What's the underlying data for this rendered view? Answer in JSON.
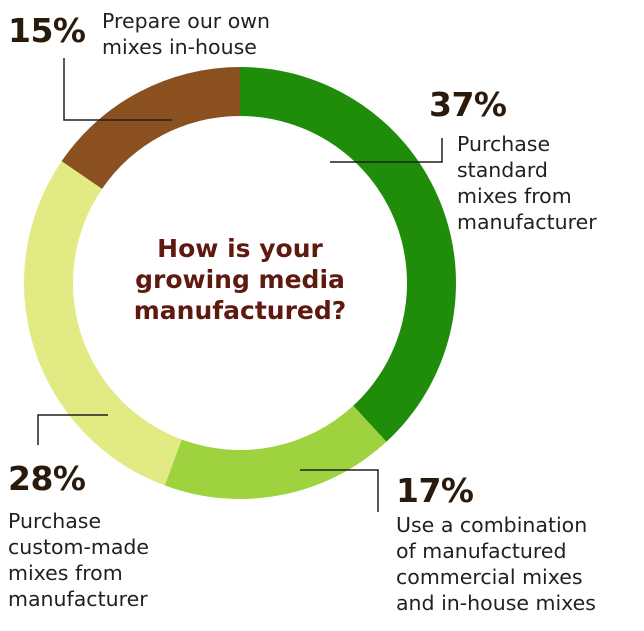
{
  "chart_data": {
    "type": "pie",
    "title": "How is your\ngrowing media\nmanufactured?",
    "slices": [
      {
        "label": "Purchase\nstandard\nmixes from\nmanufacturer",
        "value": 37,
        "value_label": "37%",
        "color": "#1f8c0a"
      },
      {
        "label": "Use a combination\nof manufactured\ncommercial mixes\nand in-house mixes",
        "value": 17,
        "value_label": "17%",
        "color": "#9fd23f"
      },
      {
        "label": "Purchase\ncustom-made\nmixes from\nmanufacturer",
        "value": 28,
        "value_label": "28%",
        "color": "#e1ea83"
      },
      {
        "label": "Prepare our own\nmixes in-house",
        "value": 15,
        "value_label": "15%",
        "color": "#8b5020"
      }
    ],
    "start_angle_deg": 0,
    "direction": "clockwise",
    "style": "donut",
    "leader_line_color": "#231f20"
  }
}
